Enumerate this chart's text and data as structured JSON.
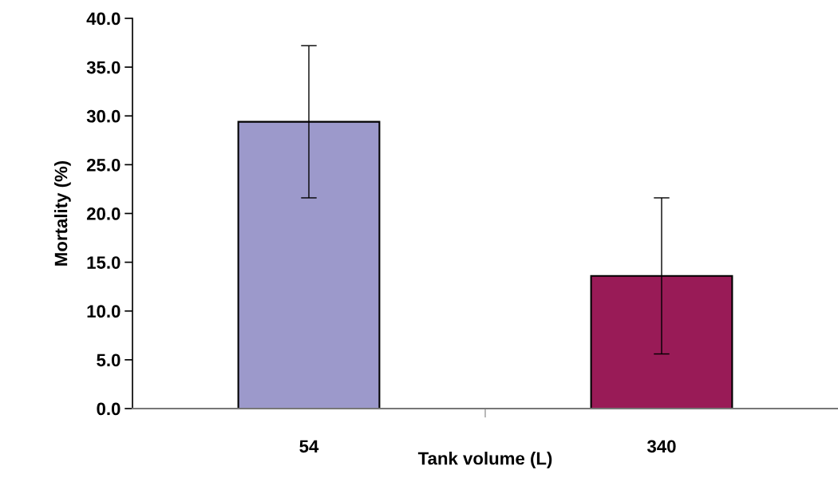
{
  "chart_data": {
    "type": "bar",
    "xlabel": "Tank volume (L)",
    "ylabel": "Mortality (%)",
    "categories": [
      "54",
      "340"
    ],
    "values": [
      29.4,
      13.6
    ],
    "errors": [
      7.8,
      8.0
    ],
    "colors": [
      "#9c99cb",
      "#991b57"
    ],
    "ylim": [
      0,
      40
    ],
    "yticks": [
      {
        "value": 0,
        "label": "0.0"
      },
      {
        "value": 5,
        "label": "5.0"
      },
      {
        "value": 10,
        "label": "10.0"
      },
      {
        "value": 15,
        "label": "15.0"
      },
      {
        "value": 20,
        "label": "20.0"
      },
      {
        "value": 25,
        "label": "25.0"
      },
      {
        "value": 30,
        "label": "30.0"
      },
      {
        "value": 35,
        "label": "35.0"
      },
      {
        "value": 40,
        "label": "40.0"
      }
    ],
    "grid": false
  }
}
